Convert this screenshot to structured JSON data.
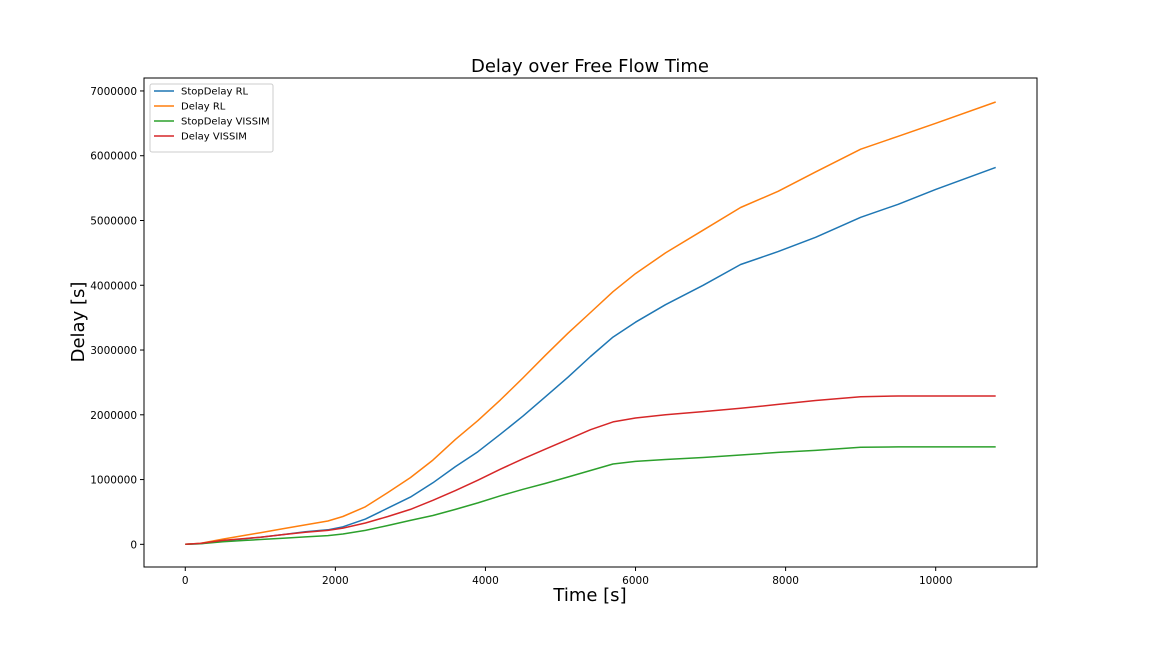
{
  "chart_data": {
    "type": "line",
    "title": "Delay over Free Flow Time",
    "xlabel": "Time [s]",
    "ylabel": "Delay [s]",
    "xlim": [
      -550,
      11350
    ],
    "ylim": [
      -350000,
      7200000
    ],
    "xticks": [
      0,
      2000,
      4000,
      6000,
      8000,
      10000
    ],
    "yticks": [
      0,
      1000000,
      2000000,
      3000000,
      4000000,
      5000000,
      6000000,
      7000000
    ],
    "grid": false,
    "legend": "top-left",
    "series": [
      {
        "name": "StopDelay RL",
        "color": "#1f77b4",
        "x": [
          0,
          200,
          500,
          800,
          1000,
          1300,
          1600,
          1900,
          2100,
          2400,
          2700,
          3000,
          3300,
          3600,
          3900,
          4200,
          4500,
          4800,
          5100,
          5400,
          5700,
          6000,
          6400,
          6900,
          7400,
          7900,
          8400,
          9000,
          9500,
          10000,
          10800
        ],
        "y": [
          0,
          10000,
          55000,
          85000,
          110000,
          150000,
          195000,
          225000,
          270000,
          390000,
          560000,
          730000,
          950000,
          1200000,
          1430000,
          1700000,
          1980000,
          2280000,
          2580000,
          2900000,
          3200000,
          3430000,
          3700000,
          4000000,
          4320000,
          4520000,
          4740000,
          5050000,
          5250000,
          5480000,
          5820000
        ]
      },
      {
        "name": "Delay RL",
        "color": "#ff7f0e",
        "x": [
          0,
          200,
          500,
          800,
          1000,
          1300,
          1600,
          1900,
          2100,
          2400,
          2700,
          3000,
          3300,
          3600,
          3900,
          4200,
          4500,
          4800,
          5100,
          5400,
          5700,
          6000,
          6400,
          6900,
          7400,
          7900,
          8400,
          9000,
          9500,
          10000,
          10800
        ],
        "y": [
          0,
          15000,
          80000,
          140000,
          180000,
          240000,
          300000,
          360000,
          430000,
          580000,
          800000,
          1030000,
          1300000,
          1620000,
          1910000,
          2230000,
          2570000,
          2920000,
          3260000,
          3580000,
          3900000,
          4180000,
          4500000,
          4850000,
          5200000,
          5450000,
          5750000,
          6100000,
          6300000,
          6500000,
          6830000
        ]
      },
      {
        "name": "StopDelay VISSIM",
        "color": "#2ca02c",
        "x": [
          0,
          200,
          500,
          800,
          1000,
          1300,
          1600,
          1900,
          2100,
          2400,
          2700,
          3000,
          3300,
          3600,
          3900,
          4200,
          4500,
          4800,
          5100,
          5400,
          5700,
          6000,
          6400,
          6900,
          7400,
          7900,
          8400,
          9000,
          9500,
          10000,
          10800
        ],
        "y": [
          0,
          10000,
          40000,
          60000,
          75000,
          95000,
          115000,
          135000,
          160000,
          215000,
          290000,
          370000,
          445000,
          540000,
          640000,
          750000,
          850000,
          940000,
          1040000,
          1140000,
          1240000,
          1280000,
          1310000,
          1340000,
          1380000,
          1420000,
          1450000,
          1500000,
          1505000,
          1505000,
          1505000
        ]
      },
      {
        "name": "Delay VISSIM",
        "color": "#d62728",
        "x": [
          0,
          200,
          500,
          800,
          1000,
          1300,
          1600,
          1900,
          2100,
          2400,
          2700,
          3000,
          3300,
          3600,
          3900,
          4200,
          4500,
          4800,
          5100,
          5400,
          5700,
          6000,
          6400,
          6900,
          7400,
          7900,
          8400,
          9000,
          9500,
          10000,
          10800
        ],
        "y": [
          0,
          15000,
          60000,
          90000,
          110000,
          150000,
          185000,
          215000,
          250000,
          330000,
          430000,
          540000,
          680000,
          830000,
          990000,
          1160000,
          1320000,
          1470000,
          1620000,
          1770000,
          1890000,
          1950000,
          2000000,
          2050000,
          2100000,
          2160000,
          2220000,
          2280000,
          2290000,
          2290000,
          2290000
        ]
      }
    ]
  }
}
